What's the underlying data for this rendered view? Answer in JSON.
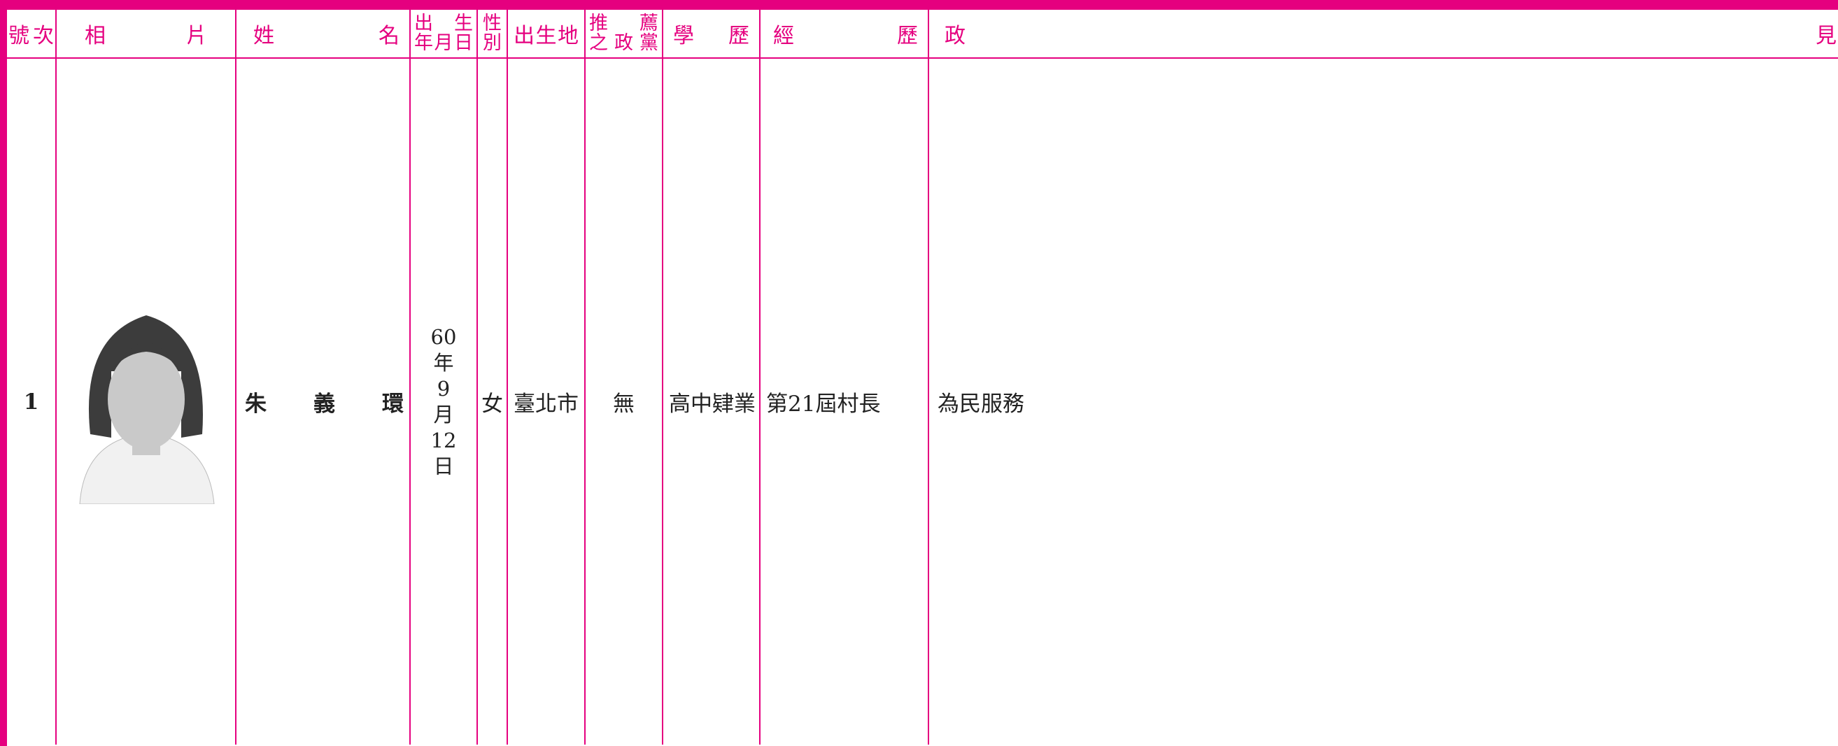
{
  "header": {
    "number": "號次",
    "photo": "相片",
    "name": "姓名",
    "birth_date": [
      "出生",
      "年月日"
    ],
    "gender": [
      "性",
      "別"
    ],
    "birthplace": "出生地",
    "party": [
      "推薦",
      "之政黨"
    ],
    "education": "學歷",
    "experience": "經歷",
    "platform": "政見"
  },
  "rows": [
    {
      "number": "1",
      "name": "朱義環",
      "birth_date": [
        "60",
        "年",
        "9",
        "月",
        "12",
        "日"
      ],
      "gender": "女",
      "birthplace": "臺北市",
      "party": "無",
      "education": "高中肄業",
      "experience": "第21屆村長",
      "platform": "為民服務"
    }
  ]
}
